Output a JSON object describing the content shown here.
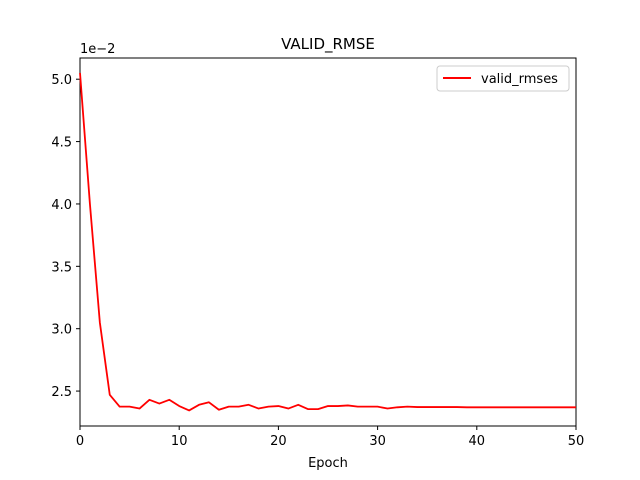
{
  "chart_data": {
    "type": "line",
    "title": "VALID_RMSE",
    "xlabel": "Epoch",
    "ylabel": "",
    "y_offset_label": "1e−2",
    "xlim": [
      0,
      50
    ],
    "ylim": [
      2.22,
      5.17
    ],
    "xticks": [
      0,
      10,
      20,
      30,
      40,
      50
    ],
    "yticks": [
      2.5,
      3.0,
      3.5,
      4.0,
      4.5,
      5.0
    ],
    "ytick_labels": [
      "2.5",
      "3.0",
      "3.5",
      "4.0",
      "4.5",
      "5.0"
    ],
    "grid": false,
    "legend_position": "upper right",
    "series": [
      {
        "name": "valid_rmses",
        "color": "#ff0000",
        "x": [
          0,
          1,
          2,
          3,
          4,
          5,
          6,
          7,
          8,
          9,
          10,
          11,
          12,
          13,
          14,
          15,
          16,
          17,
          18,
          19,
          20,
          21,
          22,
          23,
          24,
          25,
          26,
          27,
          28,
          29,
          30,
          31,
          32,
          33,
          34,
          35,
          36,
          37,
          38,
          39,
          40,
          41,
          42,
          43,
          44,
          45,
          46,
          47,
          48,
          49,
          50
        ],
        "y": [
          5.05,
          4.0,
          3.05,
          2.47,
          2.375,
          2.375,
          2.36,
          2.43,
          2.4,
          2.43,
          2.38,
          2.345,
          2.39,
          2.41,
          2.35,
          2.375,
          2.375,
          2.39,
          2.36,
          2.375,
          2.38,
          2.36,
          2.39,
          2.355,
          2.355,
          2.38,
          2.38,
          2.385,
          2.375,
          2.375,
          2.375,
          2.36,
          2.37,
          2.375,
          2.372,
          2.372,
          2.372,
          2.372,
          2.372,
          2.37,
          2.37,
          2.37,
          2.37,
          2.37,
          2.37,
          2.37,
          2.37,
          2.37,
          2.37,
          2.37,
          2.37
        ]
      }
    ]
  }
}
